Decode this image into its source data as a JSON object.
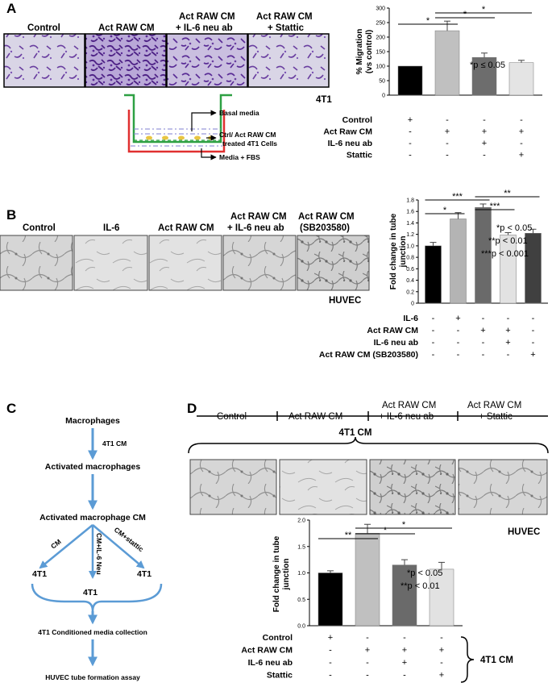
{
  "panel_letters": {
    "a": "A",
    "b": "B",
    "c": "C",
    "d": "D"
  },
  "panel_a": {
    "image_labels": [
      "Control",
      "Act RAW CM",
      "Act RAW CM",
      "+ IL-6 neu ab",
      "Act RAW CM",
      "+ Stattic"
    ],
    "cell_line": "4T1",
    "schematic": {
      "basal": "Basal media",
      "cells_1": "Ctrl/ Act RAW CM",
      "cells_2": "treated 4T1 Cells",
      "lower": "Media + FBS"
    },
    "significance_note": "*p ≤ 0.05",
    "conditions": [
      {
        "label": "Control",
        "marks": [
          "+",
          "-",
          "-",
          "-"
        ]
      },
      {
        "label": "Act Raw CM",
        "marks": [
          "-",
          "+",
          "+",
          "+"
        ]
      },
      {
        "label": "IL-6 neu ab",
        "marks": [
          "-",
          "-",
          "+",
          "-"
        ]
      },
      {
        "label": "Stattic",
        "marks": [
          "-",
          "-",
          "-",
          "+"
        ]
      }
    ]
  },
  "panel_b": {
    "image_labels": [
      "Control",
      "IL-6",
      "Act RAW CM",
      "Act RAW CM",
      "+ IL-6 neu ab",
      "Act RAW CM",
      "(SB203580)"
    ],
    "cell_line": "HUVEC",
    "significance_notes": [
      "*p < 0.05",
      "**p < 0.01",
      "***p < 0.001"
    ],
    "conditions": [
      {
        "label": "IL-6",
        "marks": [
          "-",
          "+",
          "-",
          "-",
          "-"
        ]
      },
      {
        "label": "Act RAW CM",
        "marks": [
          "-",
          "-",
          "+",
          "+",
          "-"
        ]
      },
      {
        "label": "IL-6 neu ab",
        "marks": [
          "-",
          "-",
          "-",
          "+",
          "-"
        ]
      },
      {
        "label": "Act RAW CM (SB203580)",
        "marks": [
          "-",
          "-",
          "-",
          "-",
          "+"
        ]
      }
    ]
  },
  "panel_c": {
    "nodes": {
      "macro": "Macrophages",
      "cm_step": "4T1 CM",
      "activated": "Activated macrophages",
      "act_cm": "Activated macrophage CM",
      "left": "4T1",
      "mid": "4T1",
      "right": "4T1",
      "collection": "4T1 Conditioned media collection",
      "assay": "HUVEC tube formation assay"
    },
    "branches": {
      "cm": "CM",
      "il6": "CM+IL-6 Neu",
      "stattic": "CM+stattic"
    }
  },
  "panel_d": {
    "timeline_labels": [
      "Control",
      "Act RAW CM",
      "Act RAW CM",
      "+ IL-6 neu ab",
      "Act RAW CM",
      "+ Stattic"
    ],
    "bracket_label": "4T1 CM",
    "cell_line": "HUVEC",
    "significance_notes": [
      "*p < 0.05",
      "**p < 0.01"
    ],
    "conditions": [
      {
        "label": "Control",
        "marks": [
          "+",
          "-",
          "-",
          "-"
        ]
      },
      {
        "label": "Act RAW CM",
        "marks": [
          "-",
          "+",
          "+",
          "+"
        ]
      },
      {
        "label": "IL-6 neu ab",
        "marks": [
          "-",
          "-",
          "+",
          "-"
        ]
      },
      {
        "label": "Stattic",
        "marks": [
          "-",
          "-",
          "-",
          "+"
        ]
      }
    ],
    "side_label": "4T1 CM"
  },
  "chart_data": [
    {
      "type": "bar",
      "ylabel": "% Migration (vs control)",
      "ylim": [
        0,
        300
      ],
      "yticks": [
        0,
        50,
        100,
        150,
        200,
        250,
        300
      ],
      "values": [
        100,
        222,
        130,
        112
      ],
      "errors": [
        0,
        33,
        15,
        8
      ],
      "colors": [
        "#000000",
        "#c0c0c0",
        "#6d6d6d",
        "#e4e4e4"
      ],
      "significance": [
        {
          "from": 0,
          "to": 1,
          "label": "*"
        },
        {
          "from": 1,
          "to": 2,
          "label": "*"
        },
        {
          "from": 1,
          "to": 3,
          "label": "*"
        }
      ]
    },
    {
      "type": "bar",
      "ylabel": "Fold change in tube junction",
      "ylim": [
        0,
        1.8
      ],
      "yticks": [
        "0",
        "0.2",
        "0.4",
        "0.6",
        "0.8",
        "1.0",
        "1.2",
        "1.4",
        "1.6",
        "1.8"
      ],
      "values": [
        1.0,
        1.47,
        1.67,
        1.19,
        1.22
      ],
      "errors": [
        0.06,
        0.11,
        0.06,
        0.04,
        0.07
      ],
      "colors": [
        "#000000",
        "#b4b4b4",
        "#6a6a6a",
        "#e2e2e2",
        "#404040"
      ],
      "significance": [
        {
          "from": 0,
          "to": 1,
          "label": "*"
        },
        {
          "from": 0,
          "to": 2,
          "label": "***"
        },
        {
          "from": 2,
          "to": 3,
          "label": "***"
        },
        {
          "from": 2,
          "to": 4,
          "label": "**"
        }
      ]
    },
    {
      "type": "bar",
      "ylabel": "Fold change in tube junction",
      "ylim": [
        0,
        2.0
      ],
      "yticks": [
        "0.0",
        "0.5",
        "1.0",
        "1.5",
        "2.0"
      ],
      "values": [
        1.0,
        1.75,
        1.15,
        1.07
      ],
      "errors": [
        0.04,
        0.17,
        0.1,
        0.13
      ],
      "colors": [
        "#000000",
        "#c0c0c0",
        "#6a6a6a",
        "#e2e2e2"
      ],
      "significance": [
        {
          "from": 0,
          "to": 1,
          "label": "**"
        },
        {
          "from": 1,
          "to": 2,
          "label": "*"
        },
        {
          "from": 1,
          "to": 3,
          "label": "*"
        }
      ]
    }
  ]
}
